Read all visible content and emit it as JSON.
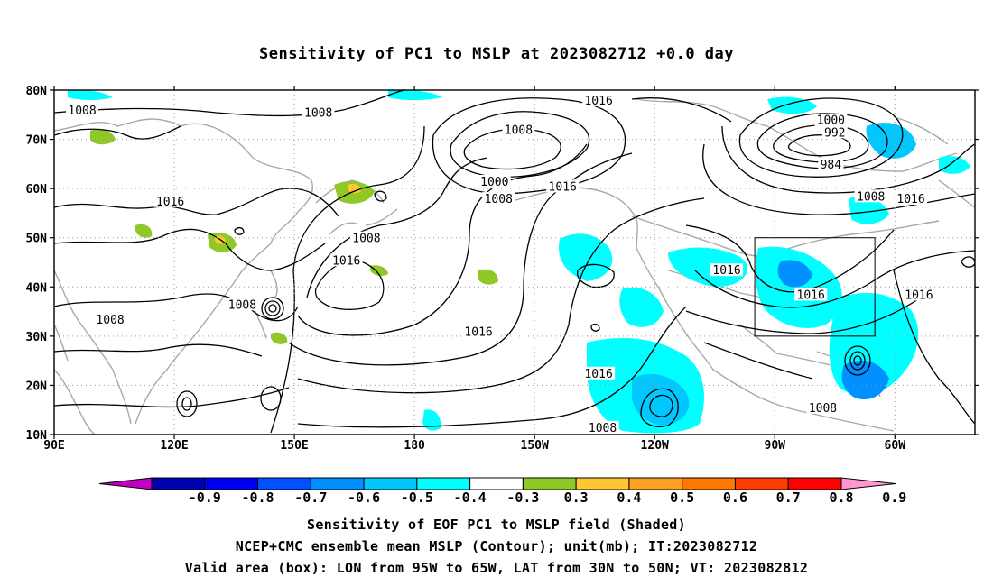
{
  "title": "Sensitivity of PC1 to MSLP at 2023082712 +0.0 day",
  "map": {
    "lon_range": [
      "90E",
      "40W"
    ],
    "lat_range": [
      "10N",
      "80N"
    ],
    "lat_ticks": [
      {
        "label": "80N",
        "lat": 80
      },
      {
        "label": "70N",
        "lat": 70
      },
      {
        "label": "60N",
        "lat": 60
      },
      {
        "label": "50N",
        "lat": 50
      },
      {
        "label": "40N",
        "lat": 40
      },
      {
        "label": "30N",
        "lat": 30
      },
      {
        "label": "20N",
        "lat": 20
      },
      {
        "label": "10N",
        "lat": 10
      }
    ],
    "lon_ticks": [
      {
        "label": "90E",
        "lon": 90
      },
      {
        "label": "120E",
        "lon": 120
      },
      {
        "label": "150E",
        "lon": 150
      },
      {
        "label": "180",
        "lon": 180
      },
      {
        "label": "150W",
        "lon": 210
      },
      {
        "label": "120W",
        "lon": 240
      },
      {
        "label": "90W",
        "lon": 270
      },
      {
        "label": "60W",
        "lon": 300
      }
    ],
    "grid": true,
    "valid_box": {
      "lon_min": 265,
      "lon_max": 295,
      "lat_min": 30,
      "lat_max": 50
    },
    "contour_labels": [
      {
        "text": "1008",
        "lon": 97,
        "lat": 76
      },
      {
        "text": "1008",
        "lon": 156,
        "lat": 75.5
      },
      {
        "text": "1016",
        "lon": 226,
        "lat": 78
      },
      {
        "text": "1008",
        "lon": 206,
        "lat": 72
      },
      {
        "text": "1000",
        "lon": 284,
        "lat": 74
      },
      {
        "text": "992",
        "lon": 285,
        "lat": 71.5
      },
      {
        "text": "984",
        "lon": 284,
        "lat": 65
      },
      {
        "text": "1000",
        "lon": 200,
        "lat": 61.5
      },
      {
        "text": "1008",
        "lon": 201,
        "lat": 58
      },
      {
        "text": "1016",
        "lon": 217,
        "lat": 60.5
      },
      {
        "text": "1008",
        "lon": 294,
        "lat": 58.5
      },
      {
        "text": "1016",
        "lon": 304,
        "lat": 58
      },
      {
        "text": "1016",
        "lon": 119,
        "lat": 57.5
      },
      {
        "text": "1008",
        "lon": 168,
        "lat": 50
      },
      {
        "text": "1016",
        "lon": 163,
        "lat": 45.5
      },
      {
        "text": "1016",
        "lon": 258,
        "lat": 43.5
      },
      {
        "text": "1016",
        "lon": 279,
        "lat": 38.5
      },
      {
        "text": "1016",
        "lon": 306,
        "lat": 38.5
      },
      {
        "text": "1008",
        "lon": 104,
        "lat": 33.5
      },
      {
        "text": "1008",
        "lon": 137,
        "lat": 36.5
      },
      {
        "text": "1016",
        "lon": 196,
        "lat": 31
      },
      {
        "text": "1016",
        "lon": 226,
        "lat": 22.5
      },
      {
        "text": "1008",
        "lon": 227,
        "lat": 11.5
      },
      {
        "text": "1008",
        "lon": 282,
        "lat": 15.5
      }
    ]
  },
  "colorbar": {
    "levels": [
      "-0.9",
      "-0.8",
      "-0.7",
      "-0.6",
      "-0.5",
      "-0.4",
      "-0.3",
      "0.3",
      "0.4",
      "0.5",
      "0.6",
      "0.7",
      "0.8",
      "0.9"
    ],
    "colors": [
      "#c000c0",
      "#0000b0",
      "#0000f0",
      "#0050ff",
      "#0090ff",
      "#00c8ff",
      "#00ffff",
      "#ffffff",
      "#90c828",
      "#ffc832",
      "#ffa020",
      "#ff7800",
      "#ff3c00",
      "#ff0000",
      "#ff96d2"
    ]
  },
  "captions": [
    "Sensitivity of EOF PC1 to MSLP field (Shaded)",
    "NCEP+CMC ensemble mean MSLP (Contour); unit(mb); IT:2023082712",
    "Valid area (box): LON from 95W to 65W, LAT from 30N to 50N; VT: 2023082812"
  ]
}
